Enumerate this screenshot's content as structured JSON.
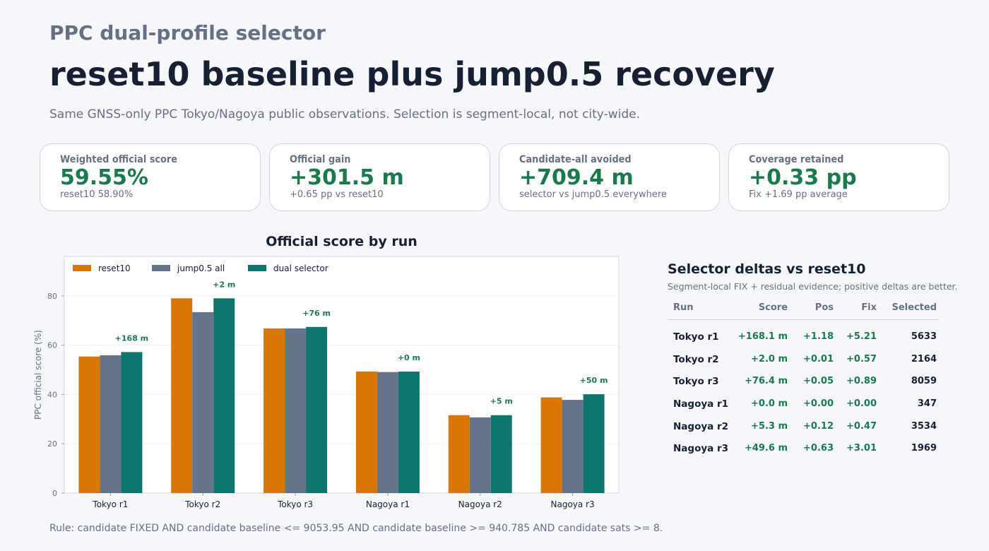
{
  "header": {
    "kicker": "PPC dual-profile selector",
    "title": "reset10 baseline plus jump0.5 recovery",
    "subtitle": "Same GNSS-only PPC Tokyo/Nagoya public observations. Selection is segment-local, not city-wide."
  },
  "cards": [
    {
      "label": "Weighted official score",
      "value": "59.55%",
      "note": "reset10 58.90%"
    },
    {
      "label": "Official gain",
      "value": "+301.5 m",
      "note": "+0.65 pp vs reset10"
    },
    {
      "label": "Candidate-all avoided",
      "value": "+709.4 m",
      "note": "selector vs jump0.5 everywhere"
    },
    {
      "label": "Coverage retained",
      "value": "+0.33 pp",
      "note": "Fix +1.69 pp average"
    }
  ],
  "chart_data": {
    "type": "bar",
    "title": "Official score by run",
    "xlabel": "",
    "ylabel": "PPC official score (%)",
    "ylim": [
      0,
      96
    ],
    "yticks": [
      0,
      20,
      40,
      60,
      80
    ],
    "grid": true,
    "legend_position": "top-left",
    "categories": [
      "Tokyo r1",
      "Tokyo r2",
      "Tokyo r3",
      "Nagoya r1",
      "Nagoya r2",
      "Nagoya r3"
    ],
    "series": [
      {
        "name": "reset10",
        "color": "#d97706",
        "values": [
          55.4,
          79.0,
          66.8,
          49.3,
          31.6,
          38.8
        ]
      },
      {
        "name": "jump0.5 all",
        "color": "#64748b",
        "values": [
          55.9,
          73.4,
          66.8,
          49.1,
          30.7,
          37.8
        ]
      },
      {
        "name": "dual selector",
        "color": "#0f766e",
        "values": [
          57.2,
          79.0,
          67.4,
          49.3,
          31.6,
          40.1
        ]
      }
    ],
    "annotations": [
      "+168 m",
      "+2 m",
      "+76 m",
      "+0 m",
      "+5 m",
      "+50 m"
    ]
  },
  "panel": {
    "title": "Selector deltas vs reset10",
    "subtitle": "Segment-local FIX + residual evidence; positive deltas are better.",
    "columns": [
      "Run",
      "Score",
      "Pos",
      "Fix",
      "Selected"
    ],
    "rows": [
      {
        "run": "Tokyo r1",
        "score": "+168.1 m",
        "pos": "+1.18",
        "fix": "+5.21",
        "selected": "5633"
      },
      {
        "run": "Tokyo r2",
        "score": "+2.0 m",
        "pos": "+0.01",
        "fix": "+0.57",
        "selected": "2164"
      },
      {
        "run": "Tokyo r3",
        "score": "+76.4 m",
        "pos": "+0.05",
        "fix": "+0.89",
        "selected": "8059"
      },
      {
        "run": "Nagoya r1",
        "score": "+0.0 m",
        "pos": "+0.00",
        "fix": "+0.00",
        "selected": "347"
      },
      {
        "run": "Nagoya r2",
        "score": "+5.3 m",
        "pos": "+0.12",
        "fix": "+0.47",
        "selected": "3534"
      },
      {
        "run": "Nagoya r3",
        "score": "+49.6 m",
        "pos": "+0.63",
        "fix": "+3.01",
        "selected": "1969"
      }
    ]
  },
  "footer": "Rule: candidate FIXED AND candidate baseline <= 9053.95 AND candidate baseline >= 940.785 AND candidate sats >= 8."
}
